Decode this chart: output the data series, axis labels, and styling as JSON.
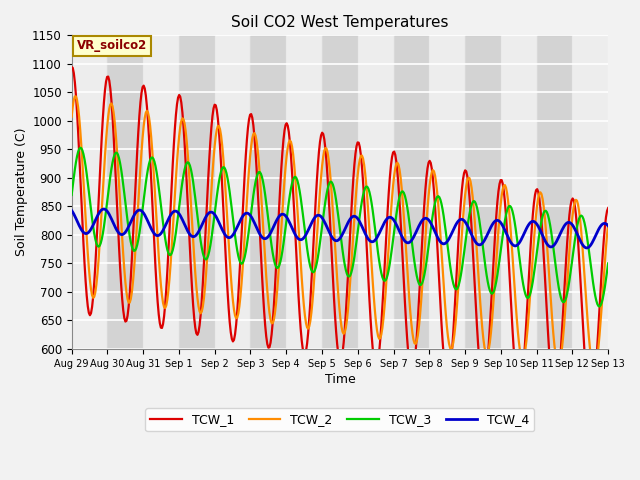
{
  "title": "Soil CO2 West Temperatures",
  "xlabel": "Time",
  "ylabel": "Soil Temperature (C)",
  "ylim": [
    600,
    1150
  ],
  "fig_bg": "#f2f2f2",
  "plot_bg": "#e0e0e0",
  "legend_label": "VR_soilco2",
  "tick_labels": [
    "Aug 29",
    "Aug 30",
    "Aug 31",
    "Sep 1",
    "Sep 2",
    "Sep 3",
    "Sep 4",
    "Sep 5",
    "Sep 6",
    "Sep 7",
    "Sep 8",
    "Sep 9",
    "Sep 10",
    "Sep 11",
    "Sep 12",
    "Sep 13"
  ],
  "line_colors": {
    "TCW_1": "#dd0000",
    "TCW_2": "#ff8c00",
    "TCW_3": "#00cc00",
    "TCW_4": "#0000cc"
  },
  "n_points": 500,
  "duration_days": 15
}
